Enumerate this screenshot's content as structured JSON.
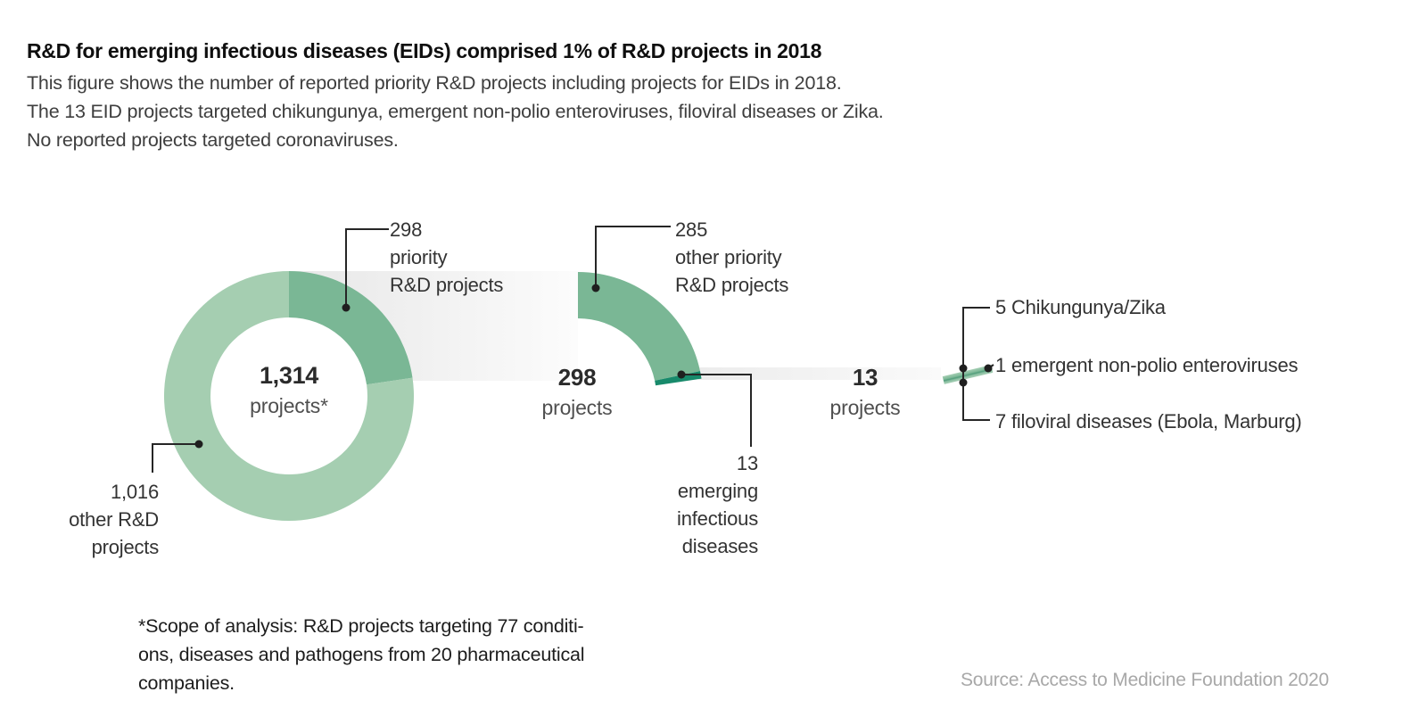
{
  "header": {
    "title": "R&D for emerging infectious diseases (EIDs) comprised 1% of R&D projects in 2018",
    "subtitle_lines": [
      "This figure shows the number of reported priority R&D projects including projects for EIDs in 2018.",
      "The 13 EID projects targeted chikungunya, emergent non-polio enteroviruses, filoviral diseases or Zika.",
      "No reported projects targeted coronaviruses."
    ]
  },
  "chart_data": [
    {
      "type": "pie",
      "name": "all-rd-projects-donut",
      "total": 1314,
      "center_value": "1,314",
      "center_unit": "projects*",
      "start_deg": 0,
      "unit_total": 1314,
      "slices": [
        {
          "label": "priority R&D projects",
          "value": 298,
          "color": "#7ab795"
        },
        {
          "label": "other R&D projects",
          "value": 1016,
          "color": "#a5ceb1"
        }
      ]
    },
    {
      "type": "pie",
      "name": "priority-rd-projects-arc",
      "total": 298,
      "value_label": "298",
      "unit_label": "projects",
      "start_deg": 0,
      "unit_total": 1314,
      "slices": [
        {
          "label": "other priority R&D projects",
          "value": 285,
          "color": "#7ab795"
        },
        {
          "label": "emerging infectious diseases",
          "value": 13,
          "color": "#188a6b"
        }
      ]
    },
    {
      "type": "bar",
      "name": "eid-projects-breakdown",
      "total": 13,
      "value_label": "13",
      "unit_label": "projects",
      "items": [
        {
          "label": "5 Chikungunya/Zika",
          "value": 5
        },
        {
          "label": "1 emergent non-polio enteroviruses",
          "value": 1
        },
        {
          "label": "7 filoviral diseases (Ebola, Marburg)",
          "value": 7
        }
      ]
    }
  ],
  "callouts": {
    "priority": {
      "lines": [
        "298",
        "priority",
        "R&D projects"
      ]
    },
    "other_rd": {
      "lines": [
        "1,016",
        "other R&D",
        "projects"
      ]
    },
    "other_priority": {
      "lines": [
        "285",
        "other priority",
        "R&D projects"
      ]
    },
    "eid": {
      "lines": [
        "13",
        "emerging",
        "infectious",
        "diseases"
      ]
    }
  },
  "footnote_lines": [
    "*Scope of analysis: R&D projects targeting 77 conditi-",
    "ons, diseases and pathogens from 20 pharmaceutical",
    "companies."
  ],
  "source": "Source: Access to Medicine Foundation 2020",
  "colors": {
    "green": "#7ab795",
    "green_light": "#a5ceb1",
    "teal": "#188a6b",
    "band_gray": "#e7e7e7",
    "leader": "#262626"
  }
}
